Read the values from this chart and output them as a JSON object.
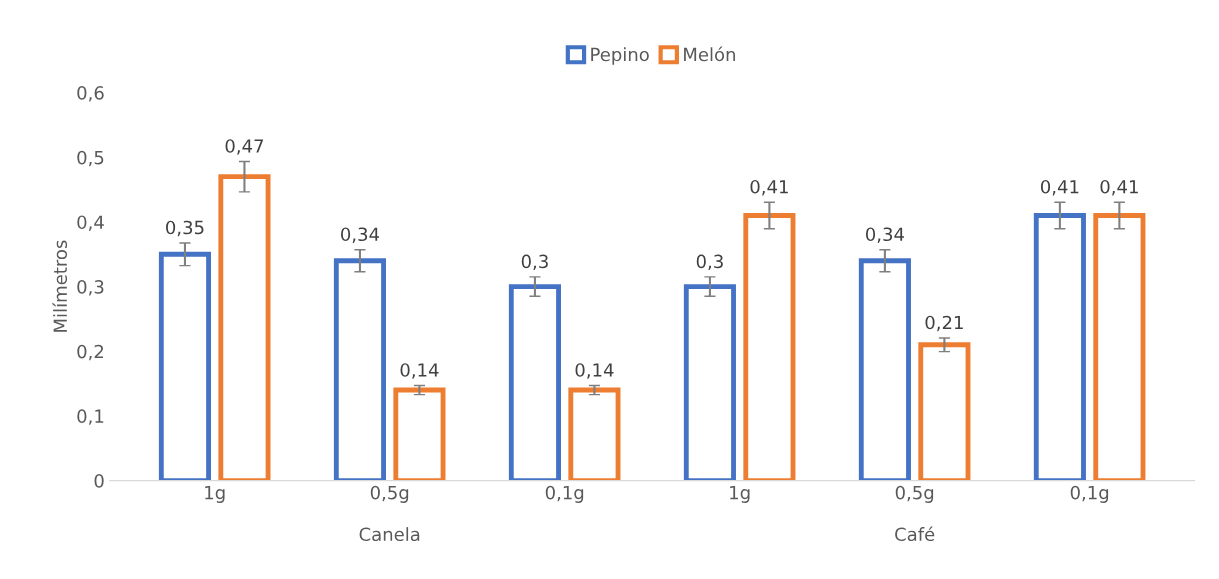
{
  "chart_data": {
    "type": "bar",
    "ylabel": "Milímetros",
    "categories": [
      "1g",
      "0,5g",
      "0,1g",
      "1g",
      "0,5g",
      "0,1g"
    ],
    "series": [
      {
        "name": "Pepino",
        "color": "#4472c4",
        "values": [
          0.35,
          0.34,
          0.3,
          0.3,
          0.34,
          0.41
        ],
        "errors": [
          0.0175,
          0.017,
          0.015,
          0.015,
          0.017,
          0.0205
        ],
        "value_labels": [
          "0,35",
          "0,34",
          "0,3",
          "0,3",
          "0,34",
          "0,41"
        ]
      },
      {
        "name": "Melón",
        "color": "#ed7d31",
        "values": [
          0.47,
          0.14,
          0.14,
          0.41,
          0.21,
          0.41
        ],
        "errors": [
          0.0235,
          0.007,
          0.007,
          0.0205,
          0.0105,
          0.0205
        ],
        "value_labels": [
          "0,47",
          "0,14",
          "0,14",
          "0,41",
          "0,21",
          "0,41"
        ]
      }
    ],
    "annotations": [
      "Canela",
      "Café"
    ],
    "ylim": [
      0,
      0.6
    ],
    "yticks": [
      0,
      {
        "value": 0.1,
        "label": "0,1"
      },
      {
        "value": 0.2,
        "label": "0,2"
      },
      {
        "value": 0.3,
        "label": "0,3"
      },
      {
        "value": 0.4,
        "label": "0,4"
      },
      {
        "value": 0.5,
        "label": "0,5"
      },
      {
        "value": 0.6,
        "label": "0,6"
      }
    ],
    "grid": false,
    "legend": "top"
  }
}
